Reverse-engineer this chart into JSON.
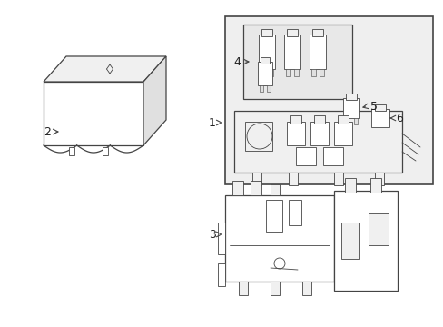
{
  "bg_color": "#ffffff",
  "lc": "#444444",
  "lc_light": "#888888",
  "label_color": "#222222",
  "fill_white": "#ffffff",
  "fill_gray": "#f0f0f0",
  "fill_med": "#e0e0e0",
  "fill_dark": "#cccccc"
}
